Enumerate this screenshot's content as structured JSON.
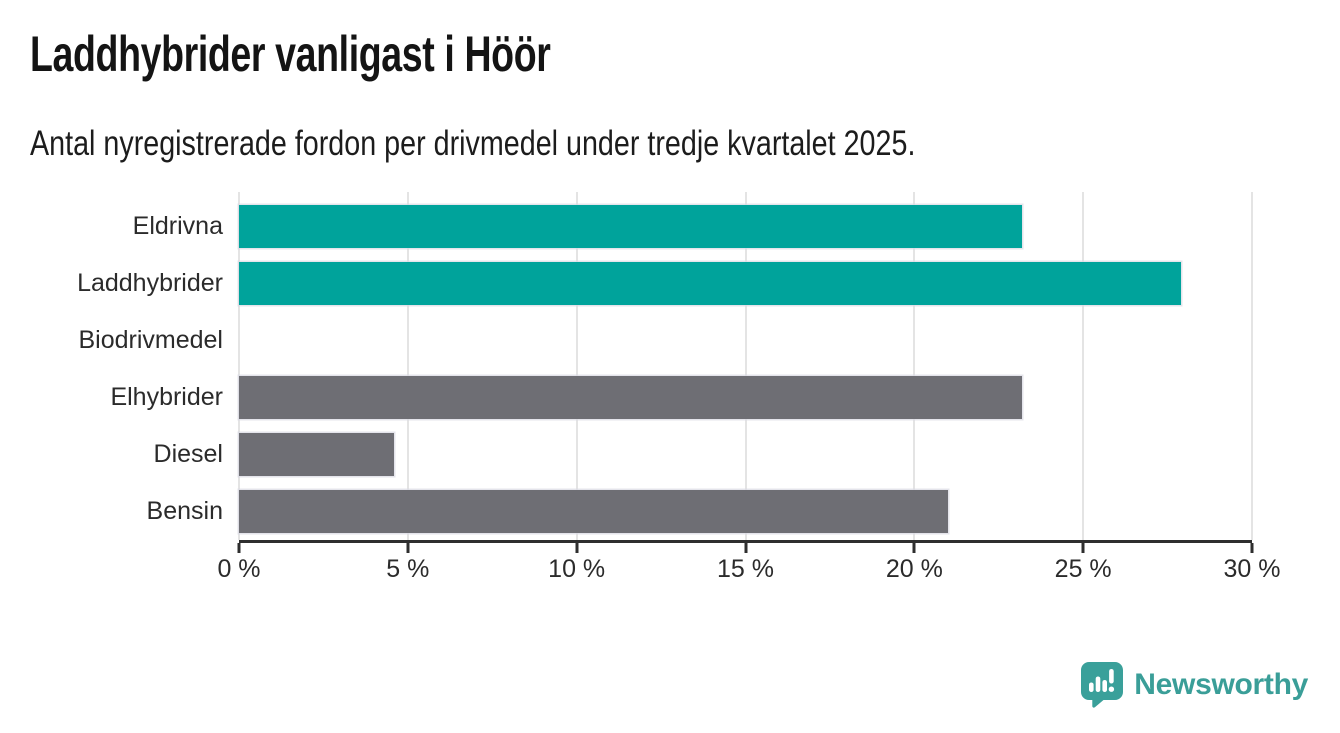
{
  "header": {
    "title": "Laddhybrider vanligast i Höör",
    "subtitle": "Antal nyregistrerade fordon per drivmedel under tredje kvartalet 2025."
  },
  "chart_data": {
    "type": "bar",
    "orientation": "horizontal",
    "title": "Laddhybrider vanligast i Höör",
    "subtitle": "Antal nyregistrerade fordon per drivmedel under tredje kvartalet 2025.",
    "categories": [
      "Eldrivna",
      "Laddhybrider",
      "Biodrivmedel",
      "Elhybrider",
      "Diesel",
      "Bensin"
    ],
    "values": [
      23.2,
      27.9,
      0,
      23.2,
      4.6,
      21.0
    ],
    "unit": "%",
    "bar_colors": [
      "#00a39b",
      "#00a39b",
      "#6e6e74",
      "#6e6e74",
      "#6e6e74",
      "#6e6e74"
    ],
    "highlight_color": "#00a39b",
    "base_color": "#6e6e74",
    "xlabel": "",
    "ylabel": "",
    "xlim": [
      0,
      30
    ],
    "x_tick_values": [
      0,
      5,
      10,
      15,
      20,
      25,
      30
    ],
    "x_tick_labels": [
      "0 %",
      "5 %",
      "10 %",
      "15 %",
      "20 %",
      "25 %",
      "30 %"
    ],
    "grid": true,
    "legend": false
  },
  "footer": {
    "brand": "Newsworthy"
  },
  "colors": {
    "teal": "#00a39b",
    "gray": "#6e6e74",
    "gridline": "#e4e4e4",
    "axis": "#2e2e2e",
    "text": "#1c1c1c",
    "brand_teal": "#3a9e98"
  }
}
